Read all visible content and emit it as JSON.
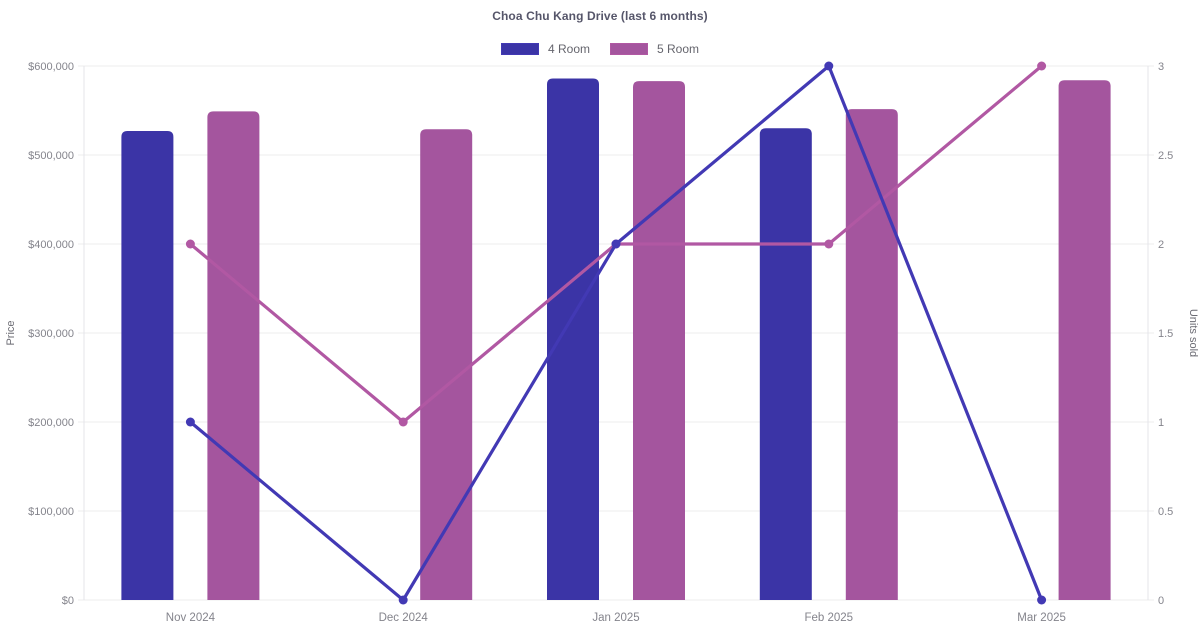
{
  "chart_data": {
    "type": "combo-bar-line",
    "title": "Choa Chu Kang Drive (last 6 months)",
    "categories": [
      "Nov 2024",
      "Dec 2024",
      "Jan 2025",
      "Feb 2025",
      "Mar 2025"
    ],
    "legend_position": "top-center",
    "grid": "horizontal-only",
    "y_left": {
      "label": "Price",
      "min": 0,
      "max": 600000,
      "ticks": [
        {
          "value": 0,
          "label": "$0"
        },
        {
          "value": 100000,
          "label": "$100,000"
        },
        {
          "value": 200000,
          "label": "$200,000"
        },
        {
          "value": 300000,
          "label": "$300,000"
        },
        {
          "value": 400000,
          "label": "$400,000"
        },
        {
          "value": 500000,
          "label": "$500,000"
        },
        {
          "value": 600000,
          "label": "$600,000"
        }
      ]
    },
    "y_right": {
      "label": "Units sold",
      "min": 0,
      "max": 3,
      "ticks": [
        {
          "value": 0,
          "label": "0"
        },
        {
          "value": 0.5,
          "label": "0.5"
        },
        {
          "value": 1,
          "label": "1"
        },
        {
          "value": 1.5,
          "label": "1.5"
        },
        {
          "value": 2,
          "label": "2"
        },
        {
          "value": 2.5,
          "label": "2.5"
        },
        {
          "value": 3,
          "label": "3"
        }
      ]
    },
    "series": [
      {
        "name": "4 Room",
        "bar_color": "#3b34a6",
        "line_color": "#4239b4",
        "prices": [
          527000,
          null,
          586000,
          530000,
          null
        ],
        "units": [
          1,
          0,
          2,
          3,
          0
        ]
      },
      {
        "name": "5 Room",
        "bar_color": "#a4559e",
        "line_color": "#b158a3",
        "prices": [
          549000,
          529000,
          583000,
          551500,
          584000
        ],
        "units": [
          2,
          1,
          2,
          2,
          3
        ]
      }
    ],
    "colors": {
      "background": "#ffffff",
      "grid": "#ececee",
      "axis_line": "#e4e4e9",
      "tick_text": "#84848c",
      "axis_title_text": "#6b6b73",
      "title_text": "#56566a",
      "legend_text": "#65656d"
    }
  }
}
